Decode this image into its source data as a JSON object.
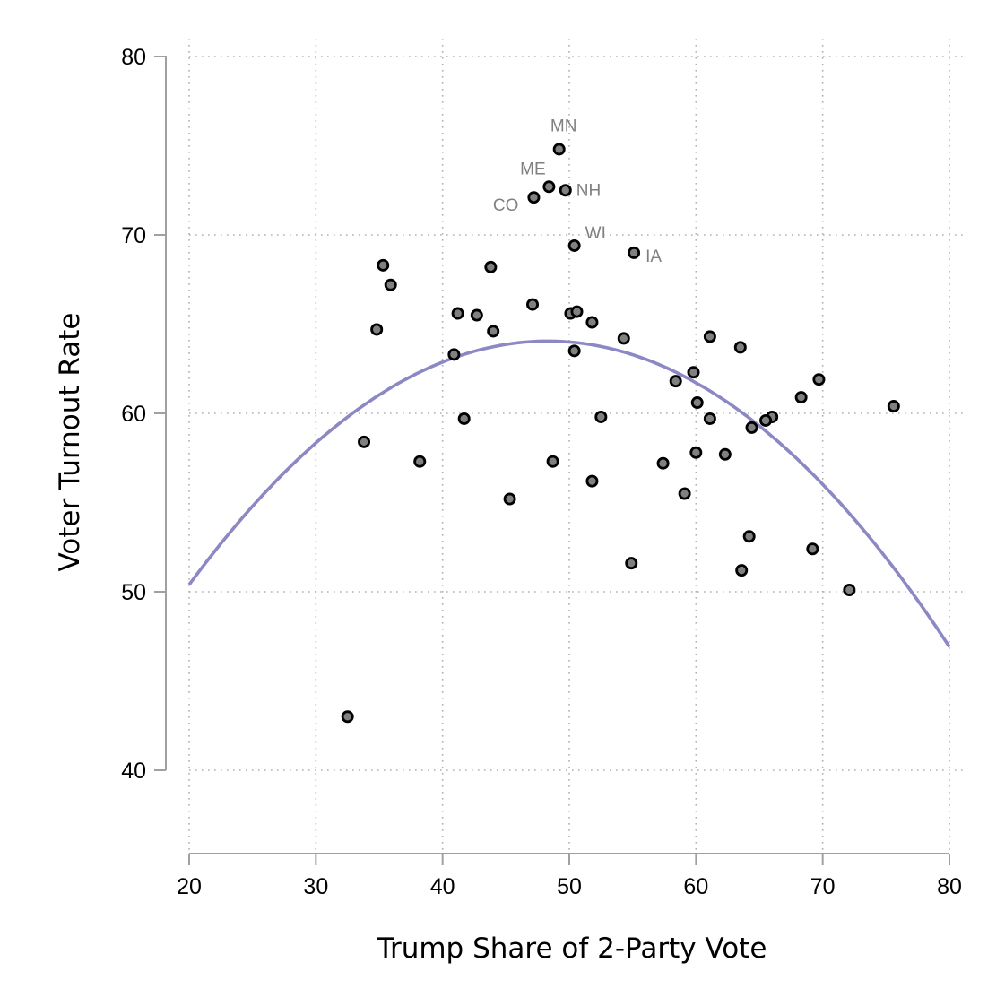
{
  "chart_data": {
    "type": "scatter",
    "title": "",
    "xlabel": "Trump Share of 2-Party Vote",
    "ylabel": "Voter Turnout Rate",
    "xlim": [
      20,
      80
    ],
    "ylim": [
      40,
      80
    ],
    "xticks": [
      20,
      30,
      40,
      50,
      60,
      70,
      80
    ],
    "yticks": [
      40,
      50,
      60,
      70,
      80
    ],
    "grid": true,
    "legend": "none",
    "colors": {
      "points": "#808080",
      "point_edge": "#000000",
      "fit_line": "#8c88c4",
      "labels": "#808080"
    },
    "fit": {
      "type": "quadratic",
      "vertex_x": 48.3,
      "vertex_y": 64.05,
      "a": -0.01705,
      "x_range": [
        20,
        80
      ]
    },
    "points": [
      {
        "x": 49.2,
        "y": 74.8,
        "label": "MN"
      },
      {
        "x": 48.4,
        "y": 72.7,
        "label": "ME"
      },
      {
        "x": 49.7,
        "y": 72.5,
        "label": "NH"
      },
      {
        "x": 47.2,
        "y": 72.1,
        "label": "CO"
      },
      {
        "x": 50.4,
        "y": 69.4,
        "label": "WI"
      },
      {
        "x": 55.1,
        "y": 69.0,
        "label": "IA"
      },
      {
        "x": 35.3,
        "y": 68.3
      },
      {
        "x": 35.9,
        "y": 67.2
      },
      {
        "x": 43.8,
        "y": 68.2
      },
      {
        "x": 47.1,
        "y": 66.1
      },
      {
        "x": 34.8,
        "y": 64.7
      },
      {
        "x": 41.2,
        "y": 65.6
      },
      {
        "x": 42.7,
        "y": 65.5
      },
      {
        "x": 44.0,
        "y": 64.6
      },
      {
        "x": 40.9,
        "y": 63.3
      },
      {
        "x": 50.1,
        "y": 65.6
      },
      {
        "x": 50.6,
        "y": 65.7
      },
      {
        "x": 51.8,
        "y": 65.1
      },
      {
        "x": 50.4,
        "y": 63.5
      },
      {
        "x": 54.3,
        "y": 64.2
      },
      {
        "x": 61.1,
        "y": 64.3
      },
      {
        "x": 63.5,
        "y": 63.7
      },
      {
        "x": 59.8,
        "y": 62.3
      },
      {
        "x": 69.7,
        "y": 61.9
      },
      {
        "x": 58.4,
        "y": 61.8
      },
      {
        "x": 68.3,
        "y": 60.9
      },
      {
        "x": 60.1,
        "y": 60.6
      },
      {
        "x": 75.6,
        "y": 60.4
      },
      {
        "x": 52.5,
        "y": 59.8
      },
      {
        "x": 41.7,
        "y": 59.7
      },
      {
        "x": 61.1,
        "y": 59.7
      },
      {
        "x": 66.0,
        "y": 59.8
      },
      {
        "x": 65.5,
        "y": 59.6
      },
      {
        "x": 64.4,
        "y": 59.2
      },
      {
        "x": 33.8,
        "y": 58.4
      },
      {
        "x": 60.0,
        "y": 57.8
      },
      {
        "x": 62.3,
        "y": 57.7
      },
      {
        "x": 38.2,
        "y": 57.3
      },
      {
        "x": 48.7,
        "y": 57.3
      },
      {
        "x": 57.4,
        "y": 57.2
      },
      {
        "x": 51.8,
        "y": 56.2
      },
      {
        "x": 59.1,
        "y": 55.5
      },
      {
        "x": 45.3,
        "y": 55.2
      },
      {
        "x": 64.2,
        "y": 53.1
      },
      {
        "x": 54.9,
        "y": 51.6
      },
      {
        "x": 69.2,
        "y": 52.4
      },
      {
        "x": 63.6,
        "y": 51.2
      },
      {
        "x": 72.1,
        "y": 50.1
      },
      {
        "x": 32.5,
        "y": 43.0
      }
    ]
  }
}
